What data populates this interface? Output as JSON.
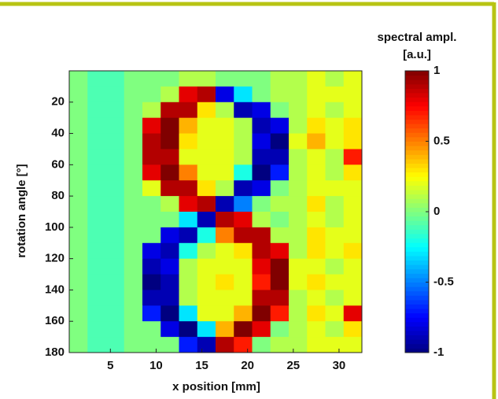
{
  "chart_data": {
    "type": "heatmap",
    "xlabel": "x position [mm]",
    "ylabel": "rotation angle [°]",
    "colorbar_label": [
      "spectral ampl.",
      "[a.u.]"
    ],
    "colormap": "jet",
    "x": [
      1.5,
      3.5,
      5.5,
      7.5,
      9.5,
      11.5,
      13.5,
      15.5,
      17.5,
      19.5,
      21.5,
      23.5,
      25.5,
      27.5,
      29.5,
      31.5
    ],
    "y": [
      5,
      15,
      25,
      35,
      45,
      55,
      65,
      75,
      85,
      95,
      105,
      115,
      125,
      135,
      145,
      155,
      165,
      175
    ],
    "z": [
      [
        0,
        -0.1,
        -0.1,
        0,
        0,
        0,
        0.1,
        0.1,
        0,
        0,
        0,
        0.1,
        0.1,
        0.2,
        0.1,
        0.2
      ],
      [
        0,
        -0.1,
        -0.1,
        0,
        0,
        0.1,
        0.8,
        0.9,
        -0.8,
        -0.3,
        0,
        0.1,
        0.1,
        0.2,
        0.2,
        0.2
      ],
      [
        0,
        -0.1,
        -0.1,
        0,
        0.1,
        0.9,
        0.9,
        0.3,
        0.1,
        -0.9,
        -0.8,
        0,
        0.1,
        0.2,
        0.1,
        0.2
      ],
      [
        0,
        -0.1,
        -0.1,
        0,
        0.8,
        1,
        0.4,
        0.2,
        0.2,
        0.1,
        -0.9,
        -0.8,
        0.1,
        0.3,
        0.2,
        0.3
      ],
      [
        0,
        -0.1,
        -0.1,
        0,
        0.9,
        1,
        0.3,
        0.2,
        0.2,
        0.1,
        -0.8,
        -1,
        0.2,
        0.4,
        0.2,
        0.3
      ],
      [
        0,
        -0.1,
        -0.1,
        0,
        0.9,
        0.9,
        0.2,
        0.2,
        0.2,
        0.1,
        -0.9,
        -0.9,
        0.1,
        0.2,
        0.1,
        0.7
      ],
      [
        0,
        -0.1,
        -0.1,
        0,
        0.8,
        1,
        0.5,
        0.2,
        0.2,
        -0.2,
        -1,
        -0.7,
        0.1,
        0.2,
        0.1,
        0.3
      ],
      [
        0,
        -0.1,
        -0.1,
        0,
        0.2,
        0.9,
        0.9,
        0.3,
        0.1,
        -0.9,
        -0.8,
        0,
        0.1,
        0.2,
        0.2,
        0.2
      ],
      [
        0,
        -0.1,
        -0.1,
        0,
        0,
        0.1,
        0.8,
        0.9,
        -0.9,
        -0.5,
        0,
        0.1,
        0.1,
        0.3,
        0.1,
        0.2
      ],
      [
        0,
        -0.1,
        -0.1,
        0,
        0,
        0,
        -0.3,
        -0.9,
        0.9,
        0.8,
        0.1,
        0,
        0.1,
        0.2,
        0.1,
        0.2
      ],
      [
        0,
        -0.1,
        -0.1,
        0,
        0,
        -0.8,
        -0.9,
        -0.2,
        0.5,
        0.9,
        0.9,
        0.1,
        0.1,
        0.3,
        0.2,
        0.2
      ],
      [
        0,
        -0.1,
        -0.1,
        0,
        -0.8,
        -0.9,
        -0.2,
        0.1,
        0.2,
        0.3,
        0.9,
        0.8,
        0.1,
        0.3,
        0.2,
        0.3
      ],
      [
        0,
        -0.1,
        -0.1,
        0,
        -0.9,
        -0.8,
        0.1,
        0.2,
        0.2,
        0.2,
        0.8,
        1,
        0.2,
        0.2,
        0.1,
        0.2
      ],
      [
        0,
        -0.1,
        -0.1,
        0,
        -1,
        -0.9,
        0.1,
        0.2,
        0.3,
        0.2,
        0.7,
        1,
        0.2,
        0.3,
        0.2,
        0.2
      ],
      [
        0,
        -0.1,
        -0.1,
        0,
        -0.9,
        -0.9,
        0.1,
        0.2,
        0.2,
        0.2,
        0.9,
        0.9,
        0.1,
        0.2,
        0.1,
        0.2
      ],
      [
        0,
        -0.1,
        -0.1,
        0,
        -0.7,
        -1,
        -0.3,
        0.2,
        0.2,
        0.4,
        1,
        0.7,
        0.1,
        0.3,
        0.2,
        0.8
      ],
      [
        0,
        -0.1,
        -0.1,
        0,
        0,
        -0.8,
        -1,
        -0.3,
        0.4,
        1,
        0.8,
        0,
        0.1,
        0.2,
        0.1,
        0.3
      ],
      [
        0,
        -0.1,
        -0.1,
        0,
        0,
        0,
        -0.7,
        -0.9,
        0.9,
        0.7,
        0,
        0.1,
        0.1,
        0.2,
        0.2,
        0.2
      ]
    ],
    "xlim": [
      0.5,
      32.5
    ],
    "ylim": [
      0,
      180
    ],
    "zlim": [
      -1,
      1
    ],
    "xticks": [
      5,
      10,
      15,
      20,
      25,
      30
    ],
    "yticks": [
      20,
      40,
      60,
      80,
      100,
      120,
      140,
      160,
      180
    ],
    "zticks": [
      -1,
      -0.5,
      0,
      0.5,
      1
    ]
  }
}
